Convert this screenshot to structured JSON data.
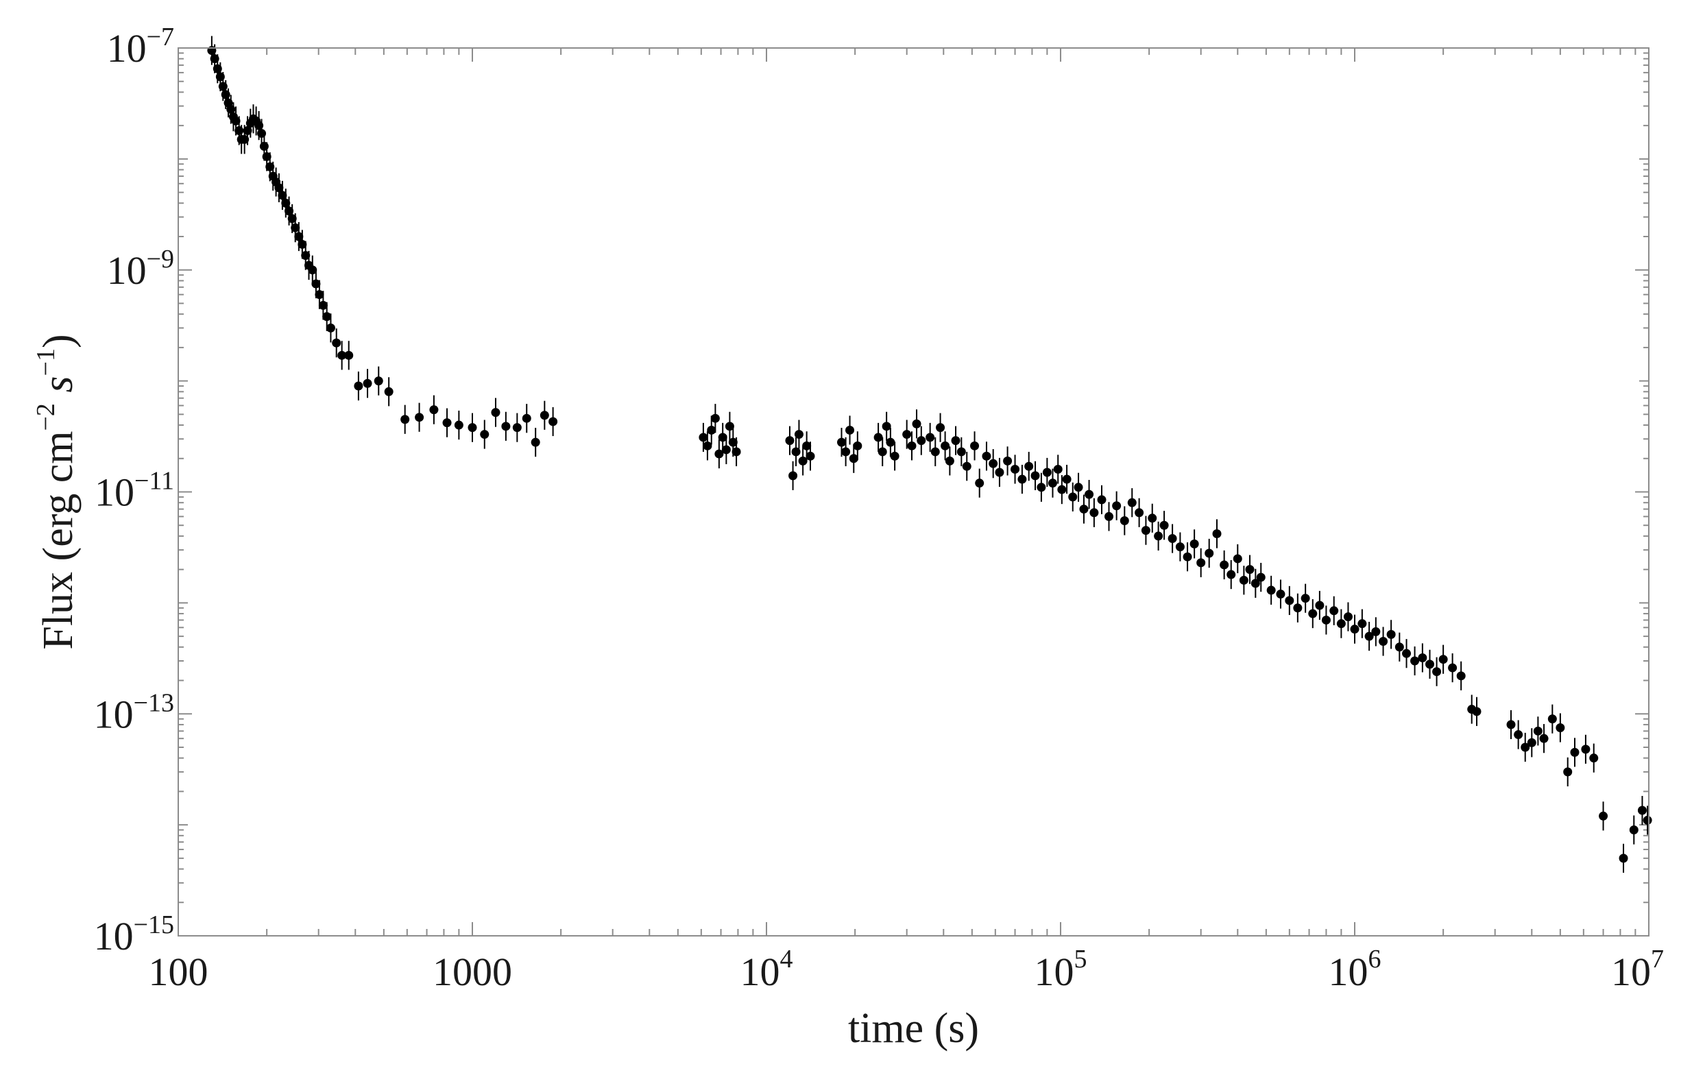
{
  "chart_data": {
    "type": "scatter",
    "title": "",
    "xlabel": "time (s)",
    "ylabel_parts": [
      "Flux (erg cm",
      "−2",
      " s",
      "−1",
      ")"
    ],
    "xscale": "log",
    "yscale": "log",
    "xlim": [
      100,
      10000000
    ],
    "ylim": [
      1e-15,
      1e-07
    ],
    "grid": false,
    "legend": "none",
    "marker_color": "#000000",
    "frame_color": "#8c8c8c",
    "xticks": [
      {
        "value": 100,
        "base": "100",
        "exp": ""
      },
      {
        "value": 1000,
        "base": "1000",
        "exp": ""
      },
      {
        "value": 10000,
        "base": "10",
        "exp": "4"
      },
      {
        "value": 100000,
        "base": "10",
        "exp": "5"
      },
      {
        "value": 1000000,
        "base": "10",
        "exp": "6"
      },
      {
        "value": 10000000,
        "base": "10",
        "exp": "7"
      }
    ],
    "yticks": [
      {
        "value": 1e-07,
        "base": "10",
        "exp": "−7"
      },
      {
        "value": 1e-09,
        "base": "10",
        "exp": "−9"
      },
      {
        "value": 1e-11,
        "base": "10",
        "exp": "−11"
      },
      {
        "value": 1e-13,
        "base": "10",
        "exp": "−13"
      },
      {
        "value": 1e-15,
        "base": "10",
        "exp": "−15"
      }
    ],
    "series": [
      {
        "points": [
          [
            130,
            9.5e-08
          ],
          [
            133,
            8e-08
          ],
          [
            136,
            6.5e-08
          ],
          [
            139,
            5.5e-08
          ],
          [
            142,
            4.5e-08
          ],
          [
            145,
            3.8e-08
          ],
          [
            148,
            3.2e-08
          ],
          [
            151,
            2.8e-08
          ],
          [
            154,
            2.4e-08
          ],
          [
            157,
            2.2e-08
          ],
          [
            161,
            1.8e-08
          ],
          [
            164,
            1.5e-08
          ],
          [
            168,
            1.5e-08
          ],
          [
            172,
            1.8e-08
          ],
          [
            176,
            2.1e-08
          ],
          [
            180,
            2.3e-08
          ],
          [
            184,
            2.2e-08
          ],
          [
            188,
            2e-08
          ],
          [
            192,
            1.7e-08
          ],
          [
            196,
            1.3e-08
          ],
          [
            200,
            1.05e-08
          ],
          [
            205,
            8.5e-09
          ],
          [
            210,
            7e-09
          ],
          [
            215,
            6.2e-09
          ],
          [
            220,
            5.5e-09
          ],
          [
            226,
            4.7e-09
          ],
          [
            232,
            4e-09
          ],
          [
            238,
            3.4e-09
          ],
          [
            244,
            2.9e-09
          ],
          [
            250,
            2.4e-09
          ],
          [
            257,
            2e-09
          ],
          [
            264,
            1.7e-09
          ],
          [
            271,
            1.35e-09
          ],
          [
            278,
            1.1e-09
          ],
          [
            286,
            1e-09
          ],
          [
            294,
            7.5e-10
          ],
          [
            302,
            6e-10
          ],
          [
            311,
            4.8e-10
          ],
          [
            320,
            3.8e-10
          ],
          [
            330,
            3e-10
          ],
          [
            345,
            2.2e-10
          ],
          [
            360,
            1.7e-10
          ],
          [
            380,
            1.7e-10
          ],
          [
            410,
            9e-11
          ],
          [
            440,
            9.5e-11
          ],
          [
            480,
            1e-10
          ],
          [
            520,
            8e-11
          ],
          [
            590,
            4.5e-11
          ],
          [
            660,
            4.7e-11
          ],
          [
            740,
            5.5e-11
          ],
          [
            820,
            4.2e-11
          ],
          [
            900,
            4e-11
          ],
          [
            1000,
            3.8e-11
          ],
          [
            1100,
            3.3e-11
          ],
          [
            1200,
            5.2e-11
          ],
          [
            1300,
            3.9e-11
          ],
          [
            1420,
            3.8e-11
          ],
          [
            1530,
            4.6e-11
          ],
          [
            1640,
            2.8e-11
          ],
          [
            1760,
            4.9e-11
          ],
          [
            1880,
            4.3e-11
          ],
          [
            6100,
            3.1e-11
          ],
          [
            6300,
            2.6e-11
          ],
          [
            6500,
            3.6e-11
          ],
          [
            6700,
            4.6e-11
          ],
          [
            6900,
            2.2e-11
          ],
          [
            7100,
            3.1e-11
          ],
          [
            7300,
            2.4e-11
          ],
          [
            7500,
            3.9e-11
          ],
          [
            7700,
            2.8e-11
          ],
          [
            7900,
            2.3e-11
          ],
          [
            12000,
            2.9e-11
          ],
          [
            12300,
            1.4e-11
          ],
          [
            12600,
            2.3e-11
          ],
          [
            12900,
            3.3e-11
          ],
          [
            13300,
            1.9e-11
          ],
          [
            13700,
            2.6e-11
          ],
          [
            14100,
            2.1e-11
          ],
          [
            18000,
            2.8e-11
          ],
          [
            18600,
            2.3e-11
          ],
          [
            19200,
            3.6e-11
          ],
          [
            19800,
            2e-11
          ],
          [
            20400,
            2.6e-11
          ],
          [
            24000,
            3.1e-11
          ],
          [
            24800,
            2.3e-11
          ],
          [
            25600,
            3.9e-11
          ],
          [
            26400,
            2.8e-11
          ],
          [
            27300,
            2.1e-11
          ],
          [
            30000,
            3.3e-11
          ],
          [
            31200,
            2.6e-11
          ],
          [
            32400,
            4.1e-11
          ],
          [
            33600,
            2.9e-11
          ],
          [
            36000,
            3.1e-11
          ],
          [
            37500,
            2.3e-11
          ],
          [
            39000,
            3.8e-11
          ],
          [
            40500,
            2.6e-11
          ],
          [
            42000,
            1.9e-11
          ],
          [
            44000,
            2.9e-11
          ],
          [
            46000,
            2.3e-11
          ],
          [
            48000,
            1.7e-11
          ],
          [
            51000,
            2.6e-11
          ],
          [
            53000,
            1.2e-11
          ],
          [
            56000,
            2.1e-11
          ],
          [
            59000,
            1.8e-11
          ],
          [
            62000,
            1.5e-11
          ],
          [
            66000,
            1.9e-11
          ],
          [
            70000,
            1.6e-11
          ],
          [
            74000,
            1.3e-11
          ],
          [
            78000,
            1.7e-11
          ],
          [
            82000,
            1.4e-11
          ],
          [
            86000,
            1.1e-11
          ],
          [
            90000,
            1.5e-11
          ],
          [
            94000,
            1.2e-11
          ],
          [
            98000,
            1.6e-11
          ],
          [
            101000,
            1.05e-11
          ],
          [
            105000,
            1.3e-11
          ],
          [
            110000,
            9e-12
          ],
          [
            115000,
            1.1e-11
          ],
          [
            120000,
            7e-12
          ],
          [
            125000,
            9.5e-12
          ],
          [
            130000,
            6.5e-12
          ],
          [
            138000,
            8.5e-12
          ],
          [
            146000,
            6e-12
          ],
          [
            155000,
            7.5e-12
          ],
          [
            165000,
            5.5e-12
          ],
          [
            175000,
            8e-12
          ],
          [
            185000,
            6.5e-12
          ],
          [
            195000,
            4.5e-12
          ],
          [
            205000,
            5.8e-12
          ],
          [
            215000,
            4e-12
          ],
          [
            225000,
            5e-12
          ],
          [
            240000,
            3.8e-12
          ],
          [
            255000,
            3.2e-12
          ],
          [
            270000,
            2.6e-12
          ],
          [
            285000,
            3.4e-12
          ],
          [
            300000,
            2.3e-12
          ],
          [
            320000,
            2.8e-12
          ],
          [
            340000,
            4.2e-12
          ],
          [
            360000,
            2.2e-12
          ],
          [
            380000,
            1.8e-12
          ],
          [
            400000,
            2.5e-12
          ],
          [
            420000,
            1.6e-12
          ],
          [
            440000,
            2e-12
          ],
          [
            460000,
            1.5e-12
          ],
          [
            480000,
            1.7e-12
          ],
          [
            520000,
            1.3e-12
          ],
          [
            560000,
            1.2e-12
          ],
          [
            600000,
            1.05e-12
          ],
          [
            640000,
            9e-13
          ],
          [
            680000,
            1.1e-12
          ],
          [
            720000,
            8e-13
          ],
          [
            760000,
            9.5e-13
          ],
          [
            800000,
            7e-13
          ],
          [
            850000,
            8.5e-13
          ],
          [
            900000,
            6.5e-13
          ],
          [
            950000,
            7.5e-13
          ],
          [
            1000000,
            5.8e-13
          ],
          [
            1060000,
            6.5e-13
          ],
          [
            1120000,
            5e-13
          ],
          [
            1180000,
            5.5e-13
          ],
          [
            1250000,
            4.5e-13
          ],
          [
            1330000,
            5.2e-13
          ],
          [
            1420000,
            4e-13
          ],
          [
            1500000,
            3.5e-13
          ],
          [
            1600000,
            3e-13
          ],
          [
            1700000,
            3.2e-13
          ],
          [
            1800000,
            2.8e-13
          ],
          [
            1900000,
            2.4e-13
          ],
          [
            2000000,
            3.1e-13
          ],
          [
            2150000,
            2.6e-13
          ],
          [
            2300000,
            2.2e-13
          ],
          [
            2500000,
            1.1e-13
          ],
          [
            2600000,
            1.05e-13
          ],
          [
            3400000,
            8e-14
          ],
          [
            3600000,
            6.5e-14
          ],
          [
            3800000,
            5e-14
          ],
          [
            4000000,
            5.5e-14
          ],
          [
            4200000,
            7e-14
          ],
          [
            4400000,
            6e-14
          ],
          [
            4700000,
            9e-14
          ],
          [
            5000000,
            7.5e-14
          ],
          [
            5300000,
            3e-14
          ],
          [
            5600000,
            4.5e-14
          ],
          [
            6100000,
            4.8e-14
          ],
          [
            6500000,
            4e-14
          ],
          [
            7000000,
            1.2e-14
          ],
          [
            8200000,
            5e-15
          ],
          [
            8900000,
            9e-15
          ],
          [
            9500000,
            1.35e-14
          ],
          [
            9900000,
            1.1e-14
          ]
        ]
      }
    ]
  }
}
